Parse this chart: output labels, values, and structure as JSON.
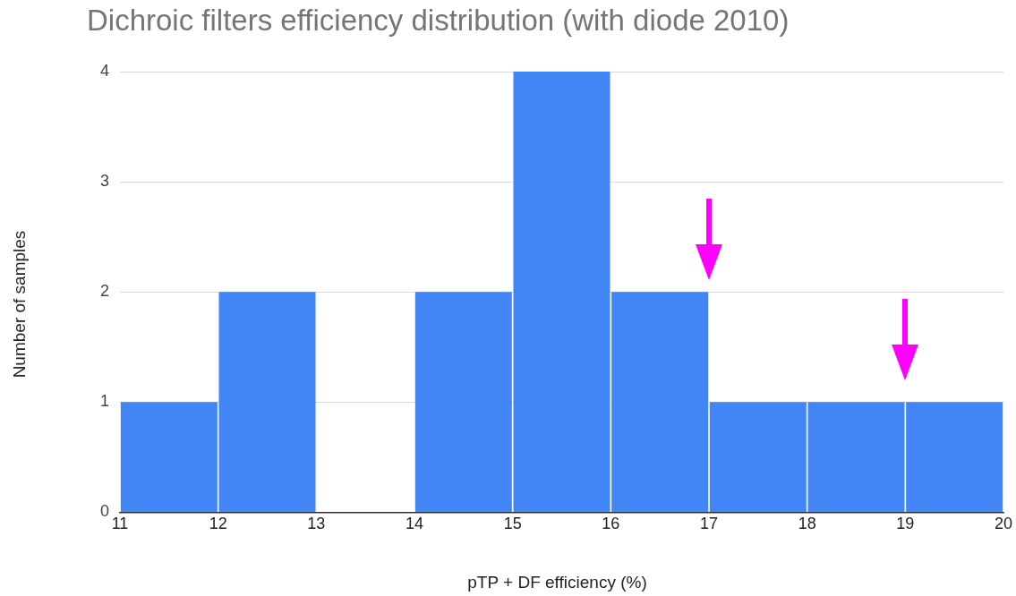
{
  "chart_data": {
    "type": "histogram",
    "title": "Dichroic filters efficiency distribution (with diode 2010)",
    "xlabel": "pTP + DF efficiency (%)",
    "ylabel": "Number of samples",
    "bins": [
      11,
      12,
      13,
      14,
      15,
      16,
      17,
      18,
      19,
      20
    ],
    "values": [
      1,
      2,
      0,
      2,
      4,
      2,
      1,
      1,
      1
    ],
    "color": "#4285f4",
    "xlim": [
      11,
      20
    ],
    "xticks": [
      11,
      12,
      13,
      14,
      15,
      16,
      17,
      18,
      19,
      20
    ],
    "ylim": [
      0,
      4
    ],
    "yticks": [
      0,
      1,
      2,
      3,
      4
    ],
    "grid": "y",
    "legend": false
  }
}
